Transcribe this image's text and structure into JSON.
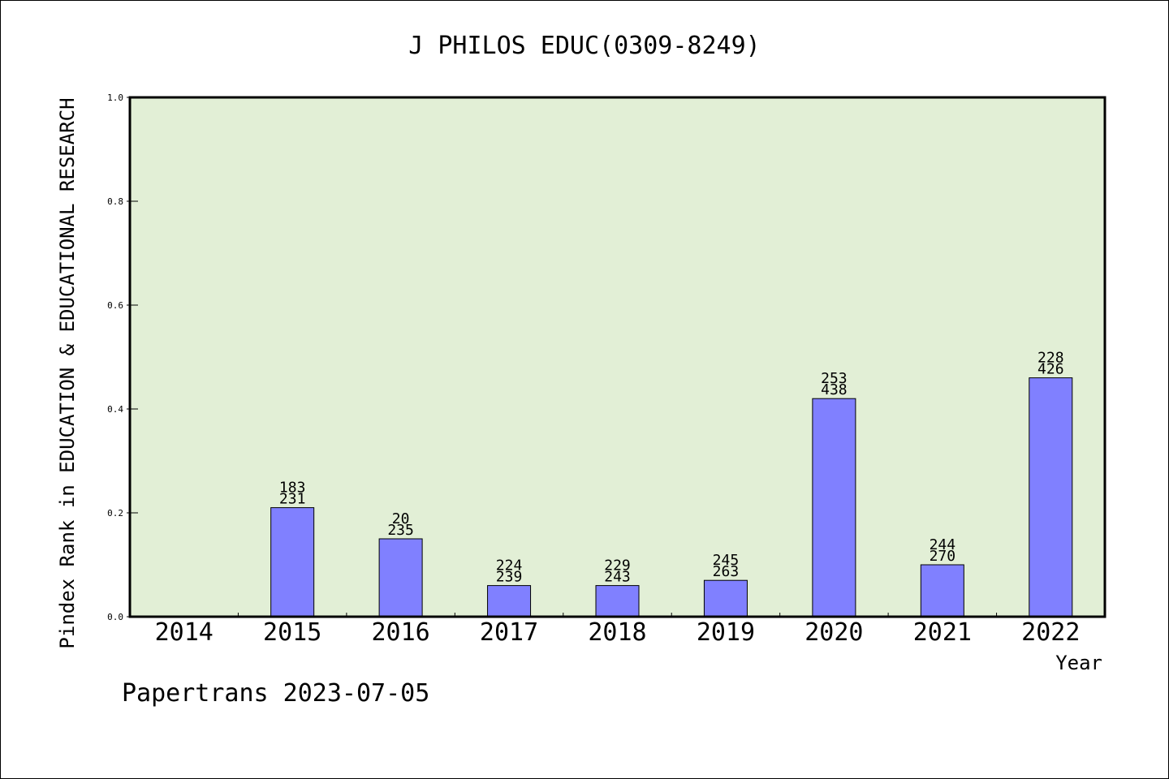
{
  "chart_data": {
    "type": "bar",
    "title": "J PHILOS EDUC(0309-8249)",
    "xlabel": "Year",
    "ylabel": "Pindex Rank in EDUCATION & EDUCATIONAL RESEARCH",
    "ylim": [
      0,
      1.0
    ],
    "yticks": [
      "0.0",
      "0.2",
      "0.4",
      "0.6",
      "0.8",
      "1.0"
    ],
    "categories": [
      "2014",
      "2015",
      "2016",
      "2017",
      "2018",
      "2019",
      "2020",
      "2021",
      "2022"
    ],
    "values": [
      null,
      0.21,
      0.15,
      0.06,
      0.06,
      0.07,
      0.42,
      0.1,
      0.46
    ],
    "labels_top": [
      "",
      "183",
      "20",
      "224",
      "229",
      "245",
      "253",
      "244",
      "228"
    ],
    "labels_bottom": [
      "",
      "231",
      "235",
      "239",
      "243",
      "263",
      "438",
      "270",
      "426"
    ],
    "grid": false,
    "colors": {
      "plot_background": "#e2efd6",
      "bar_fill": "#8080ff",
      "bar_stroke": "#000000"
    }
  },
  "footer": "Papertrans 2023-07-05"
}
